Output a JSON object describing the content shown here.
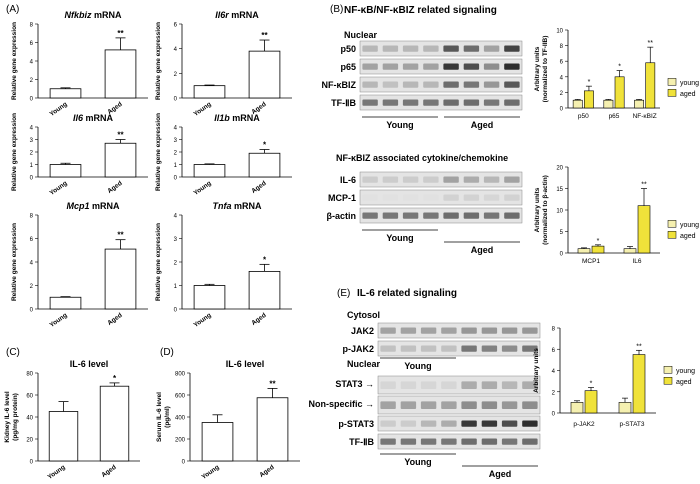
{
  "colors": {
    "young": "#ffffff",
    "aged": "#ffffff",
    "young_legend": "#f5f0b0",
    "aged_legend": "#f0e23a",
    "sig": "#000000"
  },
  "panel_labels": {
    "a": "(A)",
    "b": "(B)",
    "c": "(C)",
    "d": "(D)",
    "e": "(E)"
  },
  "panel_b": {
    "title": "NF-κB/NF-κBIZ related signaling",
    "nuclear": "Nuclear",
    "blot_rows": [
      "p50",
      "p65",
      "NF-κBIZ",
      "TF-ⅡB"
    ],
    "group_young": "Young",
    "group_aged": "Aged",
    "sub_title": "NF-κBIZ associated cytokine/chemokine",
    "blot_rows2": [
      "IL-6",
      "MCP-1",
      "β-actin"
    ],
    "group_young2": "Young",
    "group_aged2": "Aged"
  },
  "panel_e": {
    "title": "IL-6 related signaling",
    "cytosol": "Cytosol",
    "cyto_rows": [
      "JAK2",
      "p-JAK2"
    ],
    "group_young": "Young",
    "nuclear": "Nuclear",
    "nuc_rows": [
      "STAT3",
      "Non-specific",
      "p-STAT3",
      "TF-ⅡB"
    ],
    "group_young2": "Young",
    "group_aged": "Aged"
  },
  "chart_data": [
    {
      "id": "a1",
      "type": "bar",
      "title_italic": "Nfkbiz",
      "title_rest": " mRNA",
      "ylabel": "Relative gene expression",
      "categories": [
        "Young",
        "Aged"
      ],
      "values": [
        1.0,
        5.2
      ],
      "errors": [
        0.1,
        1.3
      ],
      "ylim": [
        0,
        8
      ],
      "yticks": [
        0,
        2,
        4,
        6,
        8
      ],
      "sig": [
        "",
        "**"
      ]
    },
    {
      "id": "a2",
      "type": "bar",
      "title_italic": "Il6r",
      "title_rest": " mRNA",
      "ylabel": "Relative gene expression",
      "categories": [
        "Young",
        "Aged"
      ],
      "values": [
        1.0,
        3.8
      ],
      "errors": [
        0.05,
        0.9
      ],
      "ylim": [
        0,
        6
      ],
      "yticks": [
        0,
        2,
        4,
        6
      ],
      "sig": [
        "",
        "**"
      ]
    },
    {
      "id": "a3",
      "type": "bar",
      "title_italic": "Il6",
      "title_rest": " mRNA",
      "ylabel": "Relative gene expression",
      "categories": [
        "Young",
        "Aged"
      ],
      "values": [
        1.0,
        2.7
      ],
      "errors": [
        0.1,
        0.3
      ],
      "ylim": [
        0,
        4
      ],
      "yticks": [
        0,
        1,
        2,
        3,
        4
      ],
      "sig": [
        "",
        "**"
      ]
    },
    {
      "id": "a4",
      "type": "bar",
      "title_italic": "Il1b",
      "title_rest": " mRNA",
      "ylabel": "Relative gene expression",
      "categories": [
        "Young",
        "Aged"
      ],
      "values": [
        1.0,
        1.9
      ],
      "errors": [
        0.05,
        0.3
      ],
      "ylim": [
        0,
        4
      ],
      "yticks": [
        0,
        1,
        2,
        3,
        4
      ],
      "sig": [
        "",
        "*"
      ]
    },
    {
      "id": "a5",
      "type": "bar",
      "title_italic": "Mcp1",
      "title_rest": " mRNA",
      "ylabel": "Relative gene expression",
      "categories": [
        "Young",
        "Aged"
      ],
      "values": [
        1.0,
        5.1
      ],
      "errors": [
        0.05,
        0.8
      ],
      "ylim": [
        0,
        8
      ],
      "yticks": [
        0,
        2,
        4,
        6,
        8
      ],
      "sig": [
        "",
        "**"
      ]
    },
    {
      "id": "a6",
      "type": "bar",
      "title_italic": "Tnfa",
      "title_rest": " mRNA",
      "ylabel": "Relative gene expression",
      "categories": [
        "Young",
        "Aged"
      ],
      "values": [
        1.0,
        1.6
      ],
      "errors": [
        0.05,
        0.3
      ],
      "ylim": [
        0,
        4
      ],
      "yticks": [
        0,
        1,
        2,
        3,
        4
      ],
      "sig": [
        "",
        "*"
      ]
    },
    {
      "id": "c",
      "type": "bar",
      "title": "IL-6 level",
      "ylabel": "Kidney IL-6 level",
      "ylabel2": "(pg/mg protein)",
      "categories": [
        "Young",
        "Aged"
      ],
      "values": [
        45,
        68
      ],
      "errors": [
        9,
        3
      ],
      "ylim": [
        0,
        80
      ],
      "yticks": [
        0,
        20,
        40,
        60,
        80
      ],
      "sig": [
        "",
        "*"
      ]
    },
    {
      "id": "d",
      "type": "bar",
      "title": "IL-6 level",
      "ylabel": "Serum IL-6 level",
      "ylabel2": "(pg/ml)",
      "categories": [
        "Young",
        "Aged"
      ],
      "values": [
        350,
        575
      ],
      "errors": [
        70,
        85
      ],
      "ylim": [
        0,
        800
      ],
      "yticks": [
        0,
        200,
        400,
        600,
        800
      ],
      "sig": [
        "",
        "**"
      ]
    },
    {
      "id": "b1",
      "type": "bar",
      "ylabel": "Arbitrary units",
      "ylabel2": "(normalized to TF-IIB)",
      "categories": [
        "p50",
        "p65",
        "NF-κBIZ"
      ],
      "series": [
        {
          "name": "young",
          "values": [
            1.0,
            1.0,
            1.0
          ],
          "errors": [
            0.1,
            0.1,
            0.1
          ]
        },
        {
          "name": "aged",
          "values": [
            2.2,
            4.0,
            5.8
          ],
          "errors": [
            0.6,
            0.8,
            2.0
          ]
        }
      ],
      "ylim": [
        0,
        10
      ],
      "yticks": [
        0,
        2,
        4,
        6,
        8,
        10
      ],
      "sig": [
        "*",
        "*",
        "**"
      ],
      "legend": [
        "young",
        "aged"
      ]
    },
    {
      "id": "b2",
      "type": "bar",
      "ylabel": "Arbitrary units",
      "ylabel2": "(normalized to β-actin)",
      "categories": [
        "MCP1",
        "IL6"
      ],
      "series": [
        {
          "name": "young",
          "values": [
            1.0,
            1.0
          ],
          "errors": [
            0.2,
            0.5
          ]
        },
        {
          "name": "aged",
          "values": [
            1.6,
            11.0
          ],
          "errors": [
            0.3,
            4.0
          ]
        }
      ],
      "ylim": [
        0,
        20
      ],
      "yticks": [
        0,
        5,
        10,
        15,
        20
      ],
      "sig": [
        "*",
        "**"
      ],
      "legend": [
        "young",
        "aged"
      ]
    },
    {
      "id": "e",
      "type": "bar",
      "ylabel": "Arbitrary units",
      "categories": [
        "p-JAK2",
        "p-STAT3"
      ],
      "series": [
        {
          "name": "young",
          "values": [
            1.0,
            1.0
          ],
          "errors": [
            0.15,
            0.4
          ]
        },
        {
          "name": "aged",
          "values": [
            2.1,
            5.5
          ],
          "errors": [
            0.3,
            0.4
          ]
        }
      ],
      "ylim": [
        0,
        8
      ],
      "yticks": [
        0,
        2,
        4,
        6,
        8
      ],
      "sig": [
        "*",
        "**"
      ],
      "legend": [
        "young",
        "aged"
      ]
    }
  ]
}
